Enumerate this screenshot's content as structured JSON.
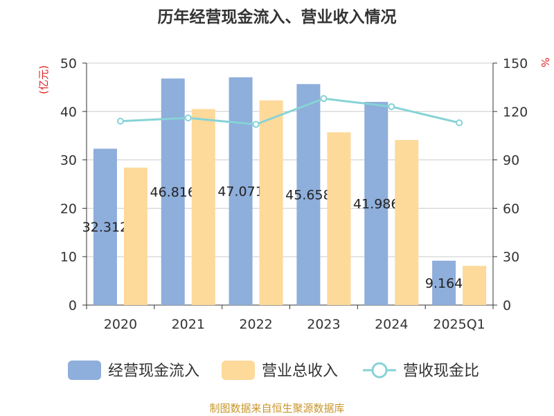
{
  "chart_data": {
    "type": "bar",
    "title": "历年经营现金流入、营业收入情况",
    "left_axis_unit": "(亿元)",
    "right_axis_unit": "%",
    "categories": [
      "2020",
      "2021",
      "2022",
      "2023",
      "2024",
      "2025Q1"
    ],
    "series": [
      {
        "name": "经营现金流入",
        "type": "bar",
        "axis": "left",
        "color": "#8eaedb",
        "values": [
          32.312,
          46.816,
          47.071,
          45.658,
          41.986,
          9.164
        ],
        "labels": [
          "32.312",
          "46.816",
          "47.071",
          "45.658",
          "41.986",
          "9.164"
        ]
      },
      {
        "name": "营业总收入",
        "type": "bar",
        "axis": "left",
        "color": "#fdd99a",
        "values": [
          28.4,
          40.5,
          42.3,
          35.7,
          34.1,
          8.1
        ]
      },
      {
        "name": "营收现金比",
        "type": "line",
        "axis": "right",
        "color": "#86d3d6",
        "values": [
          114,
          116,
          112,
          128,
          123,
          113
        ]
      }
    ],
    "left_axis": {
      "min": 0,
      "max": 50,
      "ticks": [
        "0",
        "10",
        "20",
        "30",
        "40",
        "50"
      ]
    },
    "right_axis": {
      "min": 0,
      "max": 150,
      "ticks": [
        "0",
        "30",
        "60",
        "90",
        "120",
        "150"
      ]
    },
    "grid": true,
    "legend_position": "bottom"
  },
  "legend": {
    "items": [
      {
        "label": "经营现金流入",
        "kind": "bar",
        "color": "#8eaedb"
      },
      {
        "label": "营业总收入",
        "kind": "bar",
        "color": "#fdd99a"
      },
      {
        "label": "营收现金比",
        "kind": "line",
        "color": "#86d3d6"
      }
    ]
  },
  "footer": {
    "source": "制图数据来自恒生聚源数据库"
  }
}
